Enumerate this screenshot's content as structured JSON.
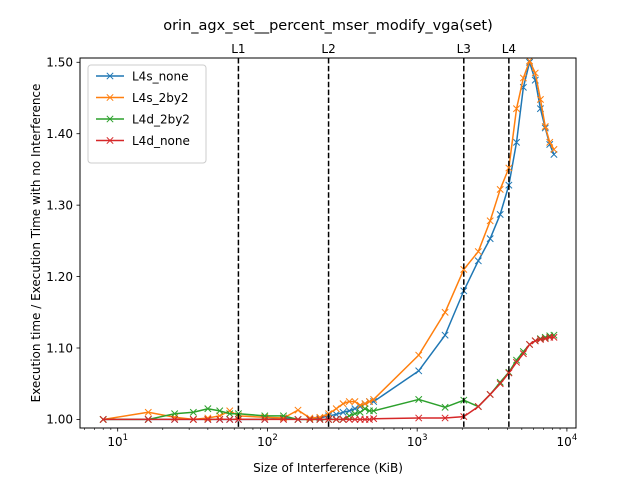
{
  "chart_data": {
    "type": "line",
    "title": "orin_agx_set__percent_mser_modify_vga(set)",
    "xlabel": "Size of Interference (KiB)",
    "ylabel": "Execution time / Execution Time with no Interference",
    "xscale": "log",
    "xlim": [
      5.6,
      11500
    ],
    "ylim": [
      0.988,
      1.506
    ],
    "x_ticks": [
      {
        "value": 10,
        "base": "10",
        "exp": "1"
      },
      {
        "value": 100,
        "base": "10",
        "exp": "2"
      },
      {
        "value": 1000,
        "base": "10",
        "exp": "3"
      },
      {
        "value": 10000,
        "base": "10",
        "exp": "4"
      }
    ],
    "y_ticks": [
      1.0,
      1.1,
      1.2,
      1.3,
      1.4,
      1.5
    ],
    "y_tick_labels": [
      "1.00",
      "1.10",
      "1.20",
      "1.30",
      "1.40",
      "1.50"
    ],
    "grid": false,
    "legend_position": "top-left",
    "marker": "x",
    "vlines": [
      {
        "label": "L1",
        "x": 64
      },
      {
        "label": "L2",
        "x": 256
      },
      {
        "label": "L3",
        "x": 2048
      },
      {
        "label": "L4",
        "x": 4096
      }
    ],
    "series": [
      {
        "name": "L4s_none",
        "color": "#1f77b4",
        "x": [
          8,
          16,
          24,
          32,
          40,
          48,
          56,
          64,
          96,
          128,
          160,
          192,
          224,
          256,
          288,
          320,
          352,
          384,
          416,
          448,
          480,
          512,
          1024,
          1536,
          2048,
          2560,
          3072,
          3584,
          4096,
          4608,
          5120,
          5632,
          6144,
          6656,
          7168,
          7680,
          8192
        ],
        "values": [
          1.0,
          1.0,
          1.0,
          1.0,
          1.0,
          1.0,
          1.0,
          1.0,
          1.0,
          1.002,
          1.0,
          1.0,
          1.002,
          1.005,
          1.007,
          1.01,
          1.012,
          1.015,
          1.018,
          1.022,
          1.025,
          1.025,
          1.068,
          1.118,
          1.18,
          1.222,
          1.253,
          1.287,
          1.328,
          1.388,
          1.465,
          1.5,
          1.475,
          1.435,
          1.408,
          1.385,
          1.371
        ]
      },
      {
        "name": "L4s_2by2",
        "color": "#ff7f0e",
        "x": [
          8,
          16,
          24,
          32,
          40,
          48,
          56,
          64,
          96,
          128,
          160,
          192,
          224,
          256,
          288,
          320,
          352,
          384,
          416,
          448,
          480,
          512,
          1024,
          1536,
          2048,
          2560,
          3072,
          3584,
          4096,
          4608,
          5120,
          5632,
          6144,
          6656,
          7168,
          7680,
          8192
        ],
        "values": [
          1.0,
          1.01,
          1.003,
          1.0,
          1.002,
          1.005,
          1.012,
          1.005,
          1.003,
          1.002,
          1.013,
          1.002,
          1.003,
          1.008,
          1.015,
          1.022,
          1.025,
          1.025,
          1.02,
          1.022,
          1.025,
          1.028,
          1.09,
          1.15,
          1.21,
          1.235,
          1.278,
          1.322,
          1.352,
          1.435,
          1.478,
          1.502,
          1.485,
          1.448,
          1.41,
          1.388,
          1.378
        ]
      },
      {
        "name": "L4d_2by2",
        "color": "#2ca02c",
        "x": [
          8,
          16,
          24,
          32,
          40,
          48,
          56,
          64,
          96,
          128,
          160,
          192,
          224,
          256,
          288,
          320,
          352,
          384,
          416,
          448,
          480,
          512,
          1024,
          1536,
          2048,
          2560,
          3072,
          3584,
          4096,
          4608,
          5120,
          5632,
          6144,
          6656,
          7168,
          7680,
          8192
        ],
        "values": [
          1.0,
          1.0,
          1.008,
          1.01,
          1.015,
          1.012,
          1.008,
          1.008,
          1.005,
          1.005,
          1.0,
          1.0,
          1.0,
          1.0,
          1.0,
          1.0,
          1.005,
          1.008,
          1.01,
          1.015,
          1.012,
          1.012,
          1.028,
          1.017,
          1.027,
          1.018,
          1.035,
          1.052,
          1.066,
          1.083,
          1.095,
          1.105,
          1.11,
          1.113,
          1.115,
          1.117,
          1.118
        ]
      },
      {
        "name": "L4d_none",
        "color": "#d62728",
        "x": [
          8,
          16,
          24,
          32,
          40,
          48,
          56,
          64,
          96,
          128,
          160,
          192,
          224,
          256,
          288,
          320,
          352,
          384,
          416,
          448,
          480,
          512,
          1024,
          1536,
          2048,
          2560,
          3072,
          3584,
          4096,
          4608,
          5120,
          5632,
          6144,
          6656,
          7168,
          7680,
          8192
        ],
        "values": [
          1.0,
          1.0,
          1.0,
          1.0,
          1.0,
          1.0,
          1.0,
          1.0,
          1.0,
          1.0,
          1.0,
          1.0,
          1.0,
          1.0,
          1.0,
          1.0,
          1.0,
          1.0,
          1.0,
          1.0,
          1.0,
          1.001,
          1.002,
          1.002,
          1.004,
          1.018,
          1.035,
          1.05,
          1.065,
          1.08,
          1.092,
          1.105,
          1.11,
          1.112,
          1.113,
          1.115,
          1.115
        ]
      }
    ]
  }
}
